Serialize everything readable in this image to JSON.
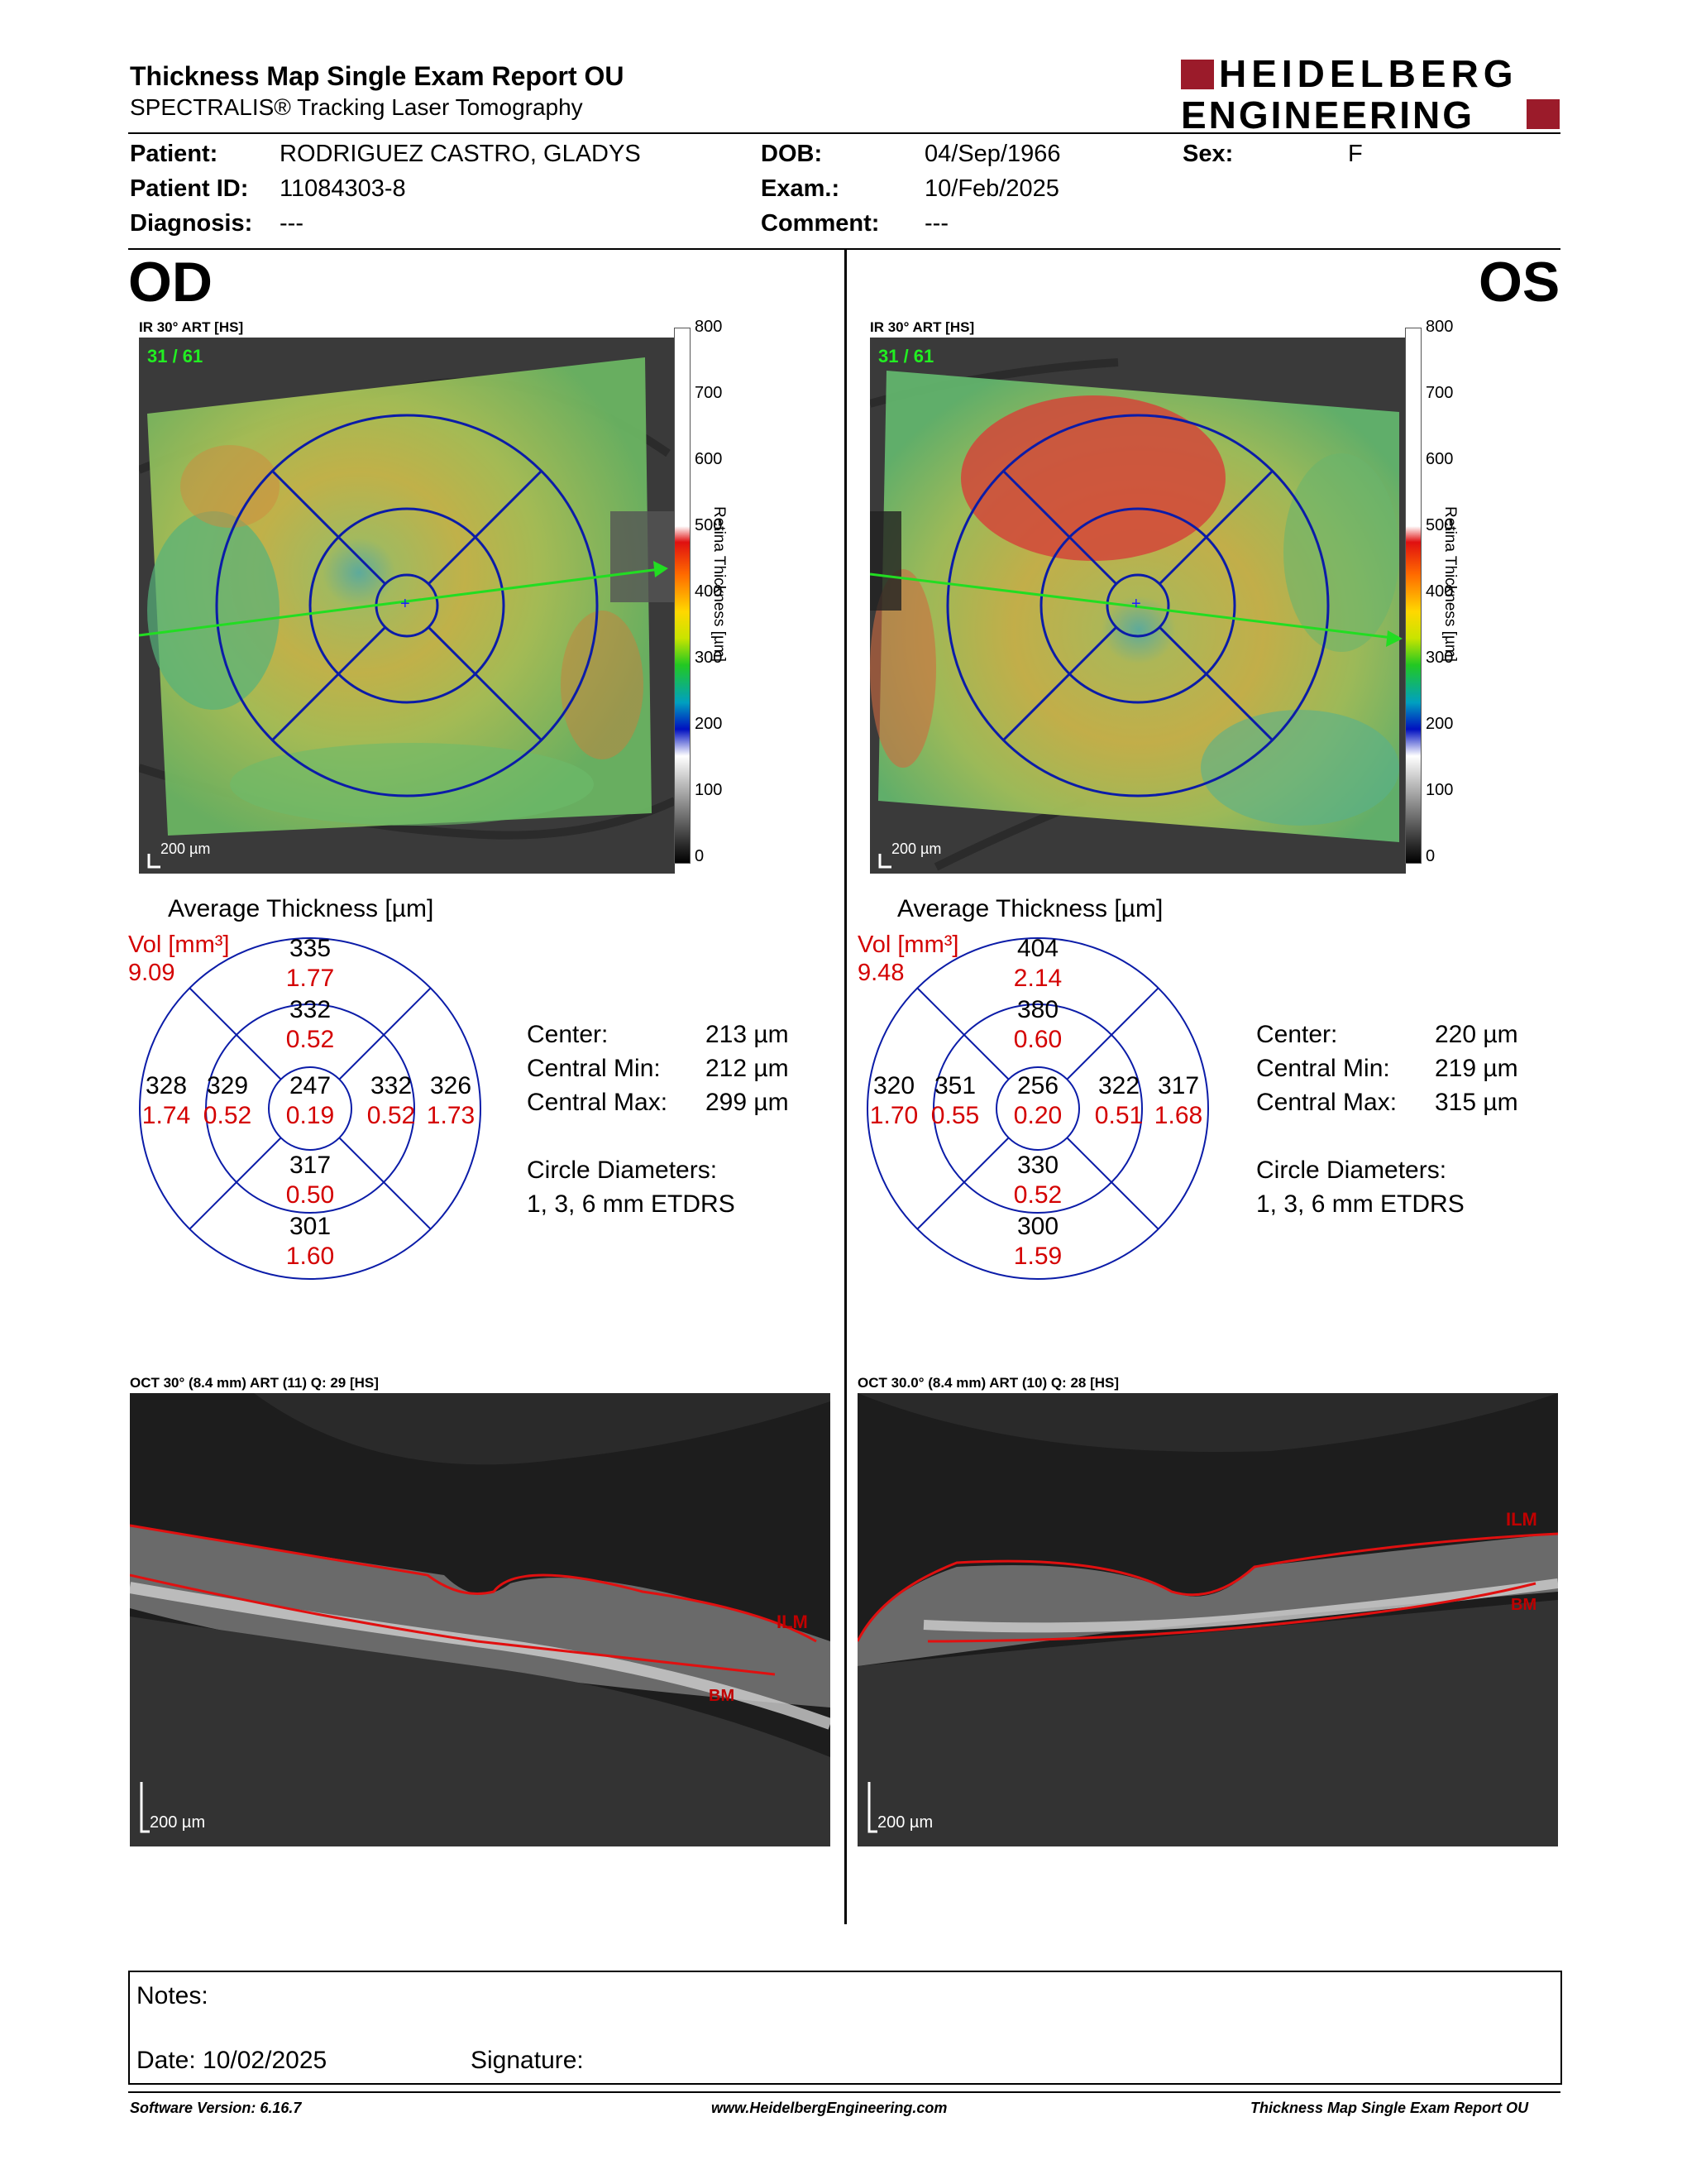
{
  "header": {
    "title": "Thickness Map Single Exam Report OU",
    "subtitle": "SPECTRALIS® Tracking Laser Tomography",
    "logo_line1": "HEIDELBERG",
    "logo_line2": "ENGINEERING"
  },
  "patient": {
    "patient_label": "Patient:",
    "patient_value": "RODRIGUEZ CASTRO, GLADYS",
    "id_label": "Patient ID:",
    "id_value": "11084303-8",
    "diagnosis_label": "Diagnosis:",
    "diagnosis_value": "---",
    "dob_label": "DOB:",
    "dob_value": "04/Sep/1966",
    "exam_label": "Exam.:",
    "exam_value": "10/Feb/2025",
    "comment_label": "Comment:",
    "comment_value": "---",
    "sex_label": "Sex:",
    "sex_value": "F"
  },
  "colorbar": {
    "ticks": [
      "800",
      "700",
      "600",
      "500",
      "400",
      "300",
      "200",
      "100",
      "0"
    ],
    "label": "Retina  Thickness [µm]"
  },
  "od": {
    "eye": "OD",
    "ir_label": "IR 30° ART [HS]",
    "frame": "31 / 61",
    "scale": "200 µm",
    "avg_title": "Average Thickness [µm]",
    "vol_label": "Vol [mm³]",
    "vol_value": "9.09",
    "sectors": {
      "outer_sup": {
        "t": "335",
        "v": "1.77"
      },
      "inner_sup": {
        "t": "332",
        "v": "0.52"
      },
      "outer_left": {
        "t": "328",
        "v": "1.74"
      },
      "inner_left": {
        "t": "329",
        "v": "0.52"
      },
      "center": {
        "t": "247",
        "v": "0.19"
      },
      "inner_right": {
        "t": "332",
        "v": "0.52"
      },
      "outer_right": {
        "t": "326",
        "v": "1.73"
      },
      "inner_inf": {
        "t": "317",
        "v": "0.50"
      },
      "outer_inf": {
        "t": "301",
        "v": "1.60"
      }
    },
    "center_label": "Center:",
    "center_value": "213 µm",
    "cmin_label": "Central Min:",
    "cmin_value": "212 µm",
    "cmax_label": "Central Max:",
    "cmax_value": "299 µm",
    "circ_label": "Circle Diameters:",
    "circ_value": "1, 3, 6 mm ETDRS",
    "oct_label": "OCT 30° (8.4 mm) ART (11) Q: 29 [HS]",
    "oct_scale": "200 µm",
    "ilm": "ILM",
    "bm": "BM"
  },
  "os": {
    "eye": "OS",
    "ir_label": "IR 30° ART [HS]",
    "frame": "31 / 61",
    "scale": "200 µm",
    "avg_title": "Average Thickness [µm]",
    "vol_label": "Vol [mm³]",
    "vol_value": "9.48",
    "sectors": {
      "outer_sup": {
        "t": "404",
        "v": "2.14"
      },
      "inner_sup": {
        "t": "380",
        "v": "0.60"
      },
      "outer_left": {
        "t": "320",
        "v": "1.70"
      },
      "inner_left": {
        "t": "351",
        "v": "0.55"
      },
      "center": {
        "t": "256",
        "v": "0.20"
      },
      "inner_right": {
        "t": "322",
        "v": "0.51"
      },
      "outer_right": {
        "t": "317",
        "v": "1.68"
      },
      "inner_inf": {
        "t": "330",
        "v": "0.52"
      },
      "outer_inf": {
        "t": "300",
        "v": "1.59"
      }
    },
    "center_label": "Center:",
    "center_value": "220 µm",
    "cmin_label": "Central Min:",
    "cmin_value": "219 µm",
    "cmax_label": "Central Max:",
    "cmax_value": "315 µm",
    "circ_label": "Circle Diameters:",
    "circ_value": "1, 3, 6 mm ETDRS",
    "oct_label": "OCT 30.0° (8.4 mm) ART (10) Q: 28 [HS]",
    "oct_scale": "200 µm",
    "ilm": "ILM",
    "bm": "BM"
  },
  "notes": {
    "notes_label": "Notes:",
    "date_label": "Date: 10/02/2025",
    "signature_label": "Signature:"
  },
  "footer": {
    "software": "Software Version: 6.16.7",
    "website": "www.HeidelbergEngineering.com",
    "report_name": "Thickness Map Single Exam Report OU"
  }
}
